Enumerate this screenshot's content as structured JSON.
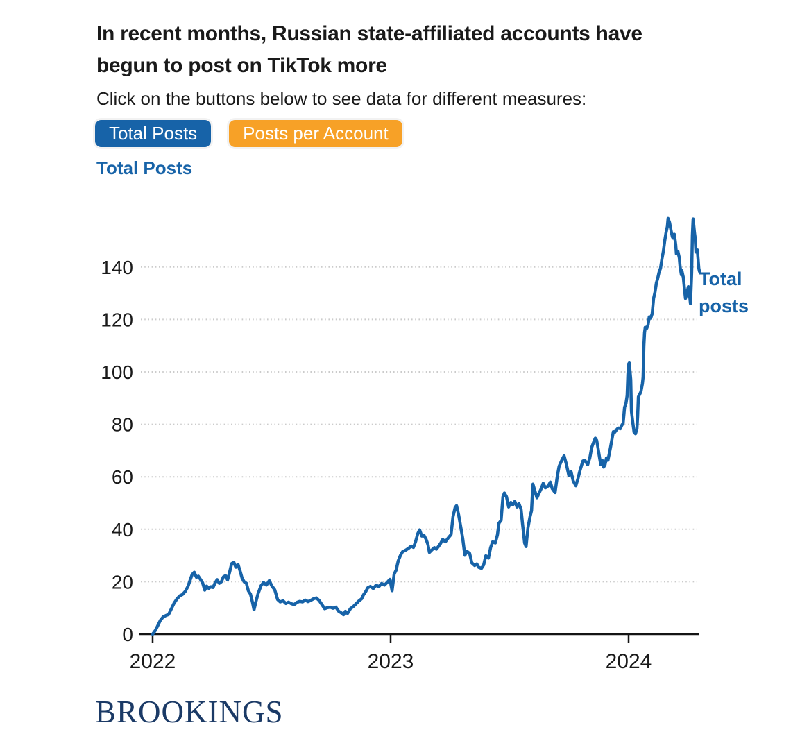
{
  "page": {
    "title_lines": [
      "In recent months, Russian state-affiliated accounts have",
      "begun to post on TikTok more"
    ],
    "subtitle": "Click on the buttons below to see data for different measures:",
    "buttons": [
      {
        "label": "Total Posts",
        "color": "#1763a8",
        "active": true
      },
      {
        "label": "Posts per Account",
        "color": "#f7a127",
        "active": false
      }
    ],
    "chart_heading": "Total Posts",
    "logo": "BROOKINGS"
  },
  "colors": {
    "accent_blue": "#1763a8",
    "accent_orange": "#f7a127",
    "logo_navy": "#1b3a66",
    "gridline": "#cbcbcb",
    "axis": "#141414",
    "text": "#1a1a1a"
  },
  "chart_data": {
    "type": "line",
    "title": "Total Posts",
    "xlabel": "",
    "ylabel": "",
    "x_unit": "fractional year (daily series)",
    "xticks": [
      2022,
      2023,
      2024
    ],
    "yticks": [
      0,
      20,
      40,
      60,
      80,
      100,
      120,
      140
    ],
    "ylim": [
      0,
      160
    ],
    "xlim": [
      2021.95,
      2024.3
    ],
    "grid": "horizontal-dotted",
    "legend_position": "right-of-line-end",
    "annotation": "Total posts",
    "series": [
      {
        "name": "Total posts",
        "color": "#1763a8",
        "points": [
          [
            2022.0,
            0
          ],
          [
            2022.012,
            1.5
          ],
          [
            2022.02,
            3.0
          ],
          [
            2022.032,
            5.2
          ],
          [
            2022.044,
            6.6
          ],
          [
            2022.055,
            7.1
          ],
          [
            2022.067,
            7.5
          ],
          [
            2022.079,
            9.7
          ],
          [
            2022.09,
            11.8
          ],
          [
            2022.102,
            13.4
          ],
          [
            2022.114,
            14.6
          ],
          [
            2022.125,
            15.1
          ],
          [
            2022.137,
            16.3
          ],
          [
            2022.149,
            18.3
          ],
          [
            2022.157,
            20.5
          ],
          [
            2022.166,
            22.7
          ],
          [
            2022.175,
            23.6
          ],
          [
            2022.184,
            21.7
          ],
          [
            2022.192,
            22.1
          ],
          [
            2022.201,
            20.9
          ],
          [
            2022.21,
            19.6
          ],
          [
            2022.219,
            16.8
          ],
          [
            2022.227,
            18.3
          ],
          [
            2022.236,
            17.5
          ],
          [
            2022.245,
            18.1
          ],
          [
            2022.254,
            17.8
          ],
          [
            2022.262,
            19.5
          ],
          [
            2022.271,
            20.8
          ],
          [
            2022.28,
            19.4
          ],
          [
            2022.289,
            20.0
          ],
          [
            2022.297,
            21.8
          ],
          [
            2022.306,
            22.3
          ],
          [
            2022.315,
            20.7
          ],
          [
            2022.324,
            23.8
          ],
          [
            2022.332,
            26.9
          ],
          [
            2022.341,
            27.4
          ],
          [
            2022.35,
            25.5
          ],
          [
            2022.359,
            26.6
          ],
          [
            2022.367,
            24.2
          ],
          [
            2022.376,
            21.3
          ],
          [
            2022.385,
            19.9
          ],
          [
            2022.394,
            19.4
          ],
          [
            2022.402,
            16.6
          ],
          [
            2022.411,
            15.3
          ],
          [
            2022.42,
            11.9
          ],
          [
            2022.426,
            9.3
          ],
          [
            2022.434,
            12.4
          ],
          [
            2022.443,
            15.4
          ],
          [
            2022.455,
            18.4
          ],
          [
            2022.466,
            19.7
          ],
          [
            2022.478,
            18.7
          ],
          [
            2022.49,
            20.4
          ],
          [
            2022.501,
            18.4
          ],
          [
            2022.513,
            16.9
          ],
          [
            2022.525,
            13.2
          ],
          [
            2022.536,
            12.3
          ],
          [
            2022.548,
            12.7
          ],
          [
            2022.56,
            11.7
          ],
          [
            2022.571,
            12.2
          ],
          [
            2022.583,
            11.6
          ],
          [
            2022.595,
            11.3
          ],
          [
            2022.606,
            12.1
          ],
          [
            2022.618,
            12.5
          ],
          [
            2022.63,
            12.3
          ],
          [
            2022.641,
            13.0
          ],
          [
            2022.653,
            12.4
          ],
          [
            2022.665,
            12.9
          ],
          [
            2022.676,
            13.5
          ],
          [
            2022.688,
            13.8
          ],
          [
            2022.7,
            12.8
          ],
          [
            2022.711,
            11.3
          ],
          [
            2022.723,
            9.7
          ],
          [
            2022.735,
            10.1
          ],
          [
            2022.746,
            10.3
          ],
          [
            2022.758,
            9.9
          ],
          [
            2022.77,
            10.3
          ],
          [
            2022.781,
            8.8
          ],
          [
            2022.793,
            8.1
          ],
          [
            2022.802,
            7.4
          ],
          [
            2022.81,
            8.7
          ],
          [
            2022.819,
            7.9
          ],
          [
            2022.831,
            9.7
          ],
          [
            2022.843,
            10.5
          ],
          [
            2022.854,
            11.5
          ],
          [
            2022.866,
            12.6
          ],
          [
            2022.878,
            13.5
          ],
          [
            2022.886,
            15.0
          ],
          [
            2022.895,
            16.2
          ],
          [
            2022.904,
            17.7
          ],
          [
            2022.915,
            18.2
          ],
          [
            2022.927,
            17.4
          ],
          [
            2022.939,
            18.7
          ],
          [
            2022.95,
            18.1
          ],
          [
            2022.962,
            19.3
          ],
          [
            2022.974,
            18.7
          ],
          [
            2022.985,
            19.7
          ],
          [
            2022.997,
            20.9
          ],
          [
            2023.006,
            16.6
          ],
          [
            2023.015,
            22.9
          ],
          [
            2023.023,
            24.4
          ],
          [
            2023.032,
            28.0
          ],
          [
            2023.041,
            30.0
          ],
          [
            2023.05,
            31.4
          ],
          [
            2023.064,
            32.1
          ],
          [
            2023.076,
            32.8
          ],
          [
            2023.087,
            33.6
          ],
          [
            2023.096,
            33.1
          ],
          [
            2023.105,
            35.3
          ],
          [
            2023.114,
            38.3
          ],
          [
            2023.122,
            39.8
          ],
          [
            2023.131,
            37.4
          ],
          [
            2023.14,
            37.7
          ],
          [
            2023.149,
            36.2
          ],
          [
            2023.157,
            34.1
          ],
          [
            2023.163,
            31.2
          ],
          [
            2023.172,
            32.0
          ],
          [
            2023.184,
            33.0
          ],
          [
            2023.192,
            32.4
          ],
          [
            2023.201,
            33.4
          ],
          [
            2023.21,
            34.6
          ],
          [
            2023.219,
            36.1
          ],
          [
            2023.23,
            35.2
          ],
          [
            2023.242,
            36.7
          ],
          [
            2023.254,
            38.0
          ],
          [
            2023.262,
            44.8
          ],
          [
            2023.271,
            48.3
          ],
          [
            2023.277,
            49.0
          ],
          [
            2023.286,
            45.4
          ],
          [
            2023.294,
            41.3
          ],
          [
            2023.303,
            36.5
          ],
          [
            2023.312,
            30.1
          ],
          [
            2023.321,
            31.6
          ],
          [
            2023.332,
            30.8
          ],
          [
            2023.341,
            27.2
          ],
          [
            2023.353,
            26.2
          ],
          [
            2023.362,
            26.8
          ],
          [
            2023.37,
            25.5
          ],
          [
            2023.382,
            25.1
          ],
          [
            2023.391,
            26.4
          ],
          [
            2023.4,
            29.9
          ],
          [
            2023.411,
            29.0
          ],
          [
            2023.42,
            33.0
          ],
          [
            2023.429,
            35.2
          ],
          [
            2023.44,
            34.8
          ],
          [
            2023.449,
            37.9
          ],
          [
            2023.455,
            42.3
          ],
          [
            2023.464,
            43.4
          ],
          [
            2023.472,
            52.4
          ],
          [
            2023.478,
            53.8
          ],
          [
            2023.487,
            52.4
          ],
          [
            2023.496,
            48.5
          ],
          [
            2023.505,
            50.2
          ],
          [
            2023.513,
            49.3
          ],
          [
            2023.522,
            50.6
          ],
          [
            2023.531,
            48.5
          ],
          [
            2023.539,
            49.8
          ],
          [
            2023.548,
            47.6
          ],
          [
            2023.554,
            42.3
          ],
          [
            2023.563,
            34.8
          ],
          [
            2023.569,
            33.4
          ],
          [
            2023.577,
            40.5
          ],
          [
            2023.586,
            44.9
          ],
          [
            2023.592,
            47.1
          ],
          [
            2023.598,
            57.2
          ],
          [
            2023.606,
            54.6
          ],
          [
            2023.615,
            52.0
          ],
          [
            2023.624,
            53.8
          ],
          [
            2023.633,
            55.5
          ],
          [
            2023.641,
            57.5
          ],
          [
            2023.65,
            55.8
          ],
          [
            2023.662,
            56.5
          ],
          [
            2023.671,
            58.0
          ],
          [
            2023.679,
            55.5
          ],
          [
            2023.691,
            54.0
          ],
          [
            2023.7,
            60.0
          ],
          [
            2023.708,
            64.0
          ],
          [
            2023.72,
            66.5
          ],
          [
            2023.729,
            68.0
          ],
          [
            2023.738,
            65.0
          ],
          [
            2023.749,
            60.5
          ],
          [
            2023.758,
            62.0
          ],
          [
            2023.767,
            58.5
          ],
          [
            2023.778,
            56.6
          ],
          [
            2023.787,
            59.2
          ],
          [
            2023.796,
            62.5
          ],
          [
            2023.808,
            66.0
          ],
          [
            2023.816,
            66.3
          ],
          [
            2023.828,
            64.6
          ],
          [
            2023.837,
            67.2
          ],
          [
            2023.845,
            71.2
          ],
          [
            2023.854,
            73.4
          ],
          [
            2023.86,
            74.7
          ],
          [
            2023.866,
            73.9
          ],
          [
            2023.872,
            70.7
          ],
          [
            2023.878,
            67.2
          ],
          [
            2023.883,
            64.6
          ],
          [
            2023.889,
            66.3
          ],
          [
            2023.895,
            63.7
          ],
          [
            2023.901,
            64.6
          ],
          [
            2023.907,
            67.2
          ],
          [
            2023.913,
            66.3
          ],
          [
            2023.918,
            68.5
          ],
          [
            2023.924,
            71.2
          ],
          [
            2023.93,
            74.3
          ],
          [
            2023.936,
            77.2
          ],
          [
            2023.942,
            77.0
          ],
          [
            2023.948,
            77.8
          ],
          [
            2023.953,
            78.3
          ],
          [
            2023.959,
            78.6
          ],
          [
            2023.965,
            78.3
          ],
          [
            2023.971,
            79.6
          ],
          [
            2023.977,
            80.4
          ],
          [
            2023.983,
            86.5
          ],
          [
            2023.989,
            88.0
          ],
          [
            2023.994,
            91.0
          ],
          [
            2023.997,
            99.0
          ],
          [
            2024.0,
            103.0
          ],
          [
            2024.003,
            103.4
          ],
          [
            2024.006,
            100.0
          ],
          [
            2024.009,
            97.0
          ],
          [
            2024.012,
            85.0
          ],
          [
            2024.018,
            80.4
          ],
          [
            2024.023,
            77.0
          ],
          [
            2024.029,
            76.4
          ],
          [
            2024.035,
            78.3
          ],
          [
            2024.038,
            83.0
          ],
          [
            2024.041,
            90.5
          ],
          [
            2024.047,
            91.5
          ],
          [
            2024.052,
            92.5
          ],
          [
            2024.058,
            95.5
          ],
          [
            2024.061,
            98.0
          ],
          [
            2024.064,
            110.0
          ],
          [
            2024.067,
            115.0
          ],
          [
            2024.07,
            117.0
          ],
          [
            2024.076,
            116.6
          ],
          [
            2024.082,
            118.0
          ],
          [
            2024.087,
            121.0
          ],
          [
            2024.093,
            120.5
          ],
          [
            2024.099,
            122.2
          ],
          [
            2024.105,
            128.0
          ],
          [
            2024.111,
            130.5
          ],
          [
            2024.117,
            134.0
          ],
          [
            2024.122,
            135.5
          ],
          [
            2024.128,
            138.0
          ],
          [
            2024.134,
            139.5
          ],
          [
            2024.14,
            143.0
          ],
          [
            2024.146,
            146.0
          ],
          [
            2024.152,
            150.0
          ],
          [
            2024.157,
            153.0
          ],
          [
            2024.163,
            155.5
          ],
          [
            2024.166,
            158.5
          ],
          [
            2024.172,
            157.0
          ],
          [
            2024.178,
            154.0
          ],
          [
            2024.184,
            151.5
          ],
          [
            2024.187,
            151.0
          ],
          [
            2024.192,
            152.5
          ],
          [
            2024.198,
            148.5
          ],
          [
            2024.201,
            145.0
          ],
          [
            2024.207,
            146.0
          ],
          [
            2024.213,
            143.5
          ],
          [
            2024.216,
            140.4
          ],
          [
            2024.222,
            137.0
          ],
          [
            2024.224,
            138.6
          ],
          [
            2024.23,
            136.0
          ],
          [
            2024.236,
            130.7
          ],
          [
            2024.239,
            128.0
          ],
          [
            2024.245,
            129.9
          ],
          [
            2024.251,
            132.5
          ],
          [
            2024.257,
            128.5
          ],
          [
            2024.26,
            126.0
          ],
          [
            2024.265,
            138.0
          ],
          [
            2024.268,
            152.0
          ],
          [
            2024.271,
            158.3
          ],
          [
            2024.277,
            153.0
          ],
          [
            2024.28,
            151.0
          ],
          [
            2024.283,
            145.7
          ],
          [
            2024.289,
            146.5
          ],
          [
            2024.295,
            139.5
          ],
          [
            2024.298,
            138.3
          ]
        ]
      }
    ]
  }
}
